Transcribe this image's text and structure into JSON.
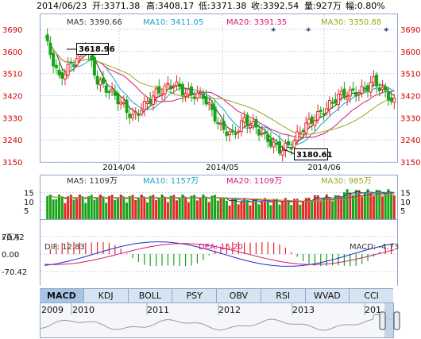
{
  "header": {
    "date": "2014/06/23",
    "open": "开:3371.38",
    "high": "高:3408.17",
    "low": "低:3371.38",
    "close": "收:3392.54",
    "volume": "量:927万",
    "change": "幅:0.80%"
  },
  "price_panel": {
    "ma5": "MA5: 3390.66",
    "ma10": "MA10: 3411.05",
    "ma20": "MA20: 3391.35",
    "ma30": "MA30: 3350.88",
    "y_ticks": [
      "3690",
      "3600",
      "3510",
      "3420",
      "3330",
      "3240",
      "3150"
    ],
    "x_ticks": [
      "2014/04",
      "2014/05",
      "2014/06"
    ],
    "annotation_high": "3618.96",
    "annotation_low": "3180.61",
    "colors": {
      "ma5": "#333333",
      "ma10": "#1ca3c4",
      "ma20": "#d6177a",
      "ma30": "#9aa81a",
      "up": "#e62828",
      "down": "#17a517"
    }
  },
  "volume_panel": {
    "ma5": "MA5: 1109万",
    "ma10": "MA10: 1157万",
    "ma20": "MA20: 1109万",
    "ma30": "MA30: 985万",
    "y_ticks": [
      "15",
      "10",
      "5"
    ]
  },
  "macd_panel": {
    "unit": "x百万",
    "dif": "DIF: 12.83",
    "dea": "DEA: 15.20",
    "macd": "MACD: -4.73",
    "y_ticks": [
      "70.42",
      "0.00",
      "-70.42"
    ]
  },
  "tabs": [
    "MACD",
    "KDJ",
    "BOLL",
    "PSY",
    "OBV",
    "RSI",
    "WVAD",
    "CCI"
  ],
  "active_tab": "MACD",
  "overview": {
    "years": [
      "2009",
      "2010",
      "2011",
      "2012",
      "2013",
      "201"
    ]
  }
}
